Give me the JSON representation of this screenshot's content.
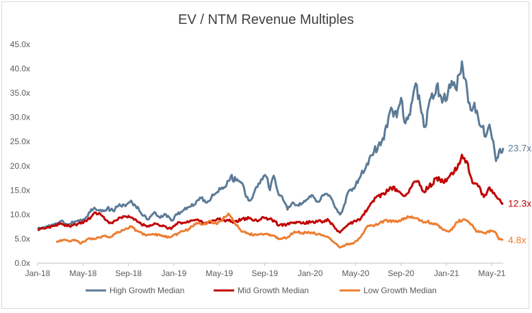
{
  "chart_data": {
    "type": "line",
    "title": "EV / NTM Revenue Multiples",
    "xlabel": "",
    "ylabel": "",
    "ylim": [
      0,
      45
    ],
    "y_ticks": [
      "0.0x",
      "5.0x",
      "10.0x",
      "15.0x",
      "20.0x",
      "25.0x",
      "30.0x",
      "35.0x",
      "40.0x",
      "45.0x"
    ],
    "x_ticks": [
      "Jan-18",
      "May-18",
      "Sep-18",
      "Jan-19",
      "May-19",
      "Sep-19",
      "Jan-20",
      "May-20",
      "Sep-20",
      "Jan-21",
      "May-21"
    ],
    "x_range": [
      "2018-01",
      "2021-06"
    ],
    "grid": "none",
    "legend_position": "bottom",
    "series": [
      {
        "name": "High Growth Median",
        "color": "#5b7a96",
        "end_label": "23.7x",
        "points": [
          [
            "2018-01-01",
            7.0
          ],
          [
            "2018-02-01",
            7.8
          ],
          [
            "2018-03-01",
            8.6
          ],
          [
            "2018-03-20",
            8.0
          ],
          [
            "2018-04-15",
            8.6
          ],
          [
            "2018-05-01",
            9.0
          ],
          [
            "2018-05-20",
            10.5
          ],
          [
            "2018-06-01",
            11.4
          ],
          [
            "2018-06-20",
            10.6
          ],
          [
            "2018-07-05",
            11.3
          ],
          [
            "2018-07-20",
            10.8
          ],
          [
            "2018-08-01",
            11.6
          ],
          [
            "2018-08-20",
            12.0
          ],
          [
            "2018-09-05",
            12.6
          ],
          [
            "2018-09-20",
            11.8
          ],
          [
            "2018-10-05",
            10.2
          ],
          [
            "2018-10-25",
            9.0
          ],
          [
            "2018-11-10",
            10.5
          ],
          [
            "2018-11-25",
            9.3
          ],
          [
            "2018-12-10",
            10.0
          ],
          [
            "2018-12-24",
            8.8
          ],
          [
            "2019-01-10",
            10.0
          ],
          [
            "2019-01-25",
            10.8
          ],
          [
            "2019-02-10",
            11.5
          ],
          [
            "2019-02-25",
            12.0
          ],
          [
            "2019-03-10",
            13.5
          ],
          [
            "2019-03-25",
            12.5
          ],
          [
            "2019-04-10",
            13.5
          ],
          [
            "2019-04-25",
            14.6
          ],
          [
            "2019-05-05",
            15.2
          ],
          [
            "2019-05-20",
            16.0
          ],
          [
            "2019-06-01",
            17.8
          ],
          [
            "2019-06-15",
            17.0
          ],
          [
            "2019-07-01",
            16.5
          ],
          [
            "2019-07-12",
            13.6
          ],
          [
            "2019-07-25",
            13.0
          ],
          [
            "2019-08-05",
            15.0
          ],
          [
            "2019-08-15",
            16.4
          ],
          [
            "2019-08-25",
            17.2
          ],
          [
            "2019-09-05",
            17.8
          ],
          [
            "2019-09-15",
            15.0
          ],
          [
            "2019-09-25",
            18.0
          ],
          [
            "2019-10-05",
            14.8
          ],
          [
            "2019-10-20",
            13.0
          ],
          [
            "2019-11-01",
            11.0
          ],
          [
            "2019-11-15",
            12.5
          ],
          [
            "2019-12-01",
            11.8
          ],
          [
            "2019-12-15",
            12.8
          ],
          [
            "2020-01-05",
            14.0
          ],
          [
            "2020-01-20",
            12.7
          ],
          [
            "2020-02-10",
            14.2
          ],
          [
            "2020-02-25",
            13.6
          ],
          [
            "2020-03-12",
            11.0
          ],
          [
            "2020-03-20",
            10.0
          ],
          [
            "2020-04-01",
            12.0
          ],
          [
            "2020-04-15",
            15.0
          ],
          [
            "2020-05-01",
            16.0
          ],
          [
            "2020-05-15",
            18.0
          ],
          [
            "2020-06-01",
            20.5
          ],
          [
            "2020-06-20",
            23.0
          ],
          [
            "2020-07-10",
            25.0
          ],
          [
            "2020-07-25",
            28.0
          ],
          [
            "2020-08-05",
            32.0
          ],
          [
            "2020-08-20",
            30.0
          ],
          [
            "2020-09-01",
            34.0
          ],
          [
            "2020-09-10",
            29.0
          ],
          [
            "2020-09-25",
            30.5
          ],
          [
            "2020-10-10",
            37.0
          ],
          [
            "2020-10-25",
            31.0
          ],
          [
            "2020-11-05",
            28.0
          ],
          [
            "2020-11-20",
            34.0
          ],
          [
            "2020-12-05",
            36.5
          ],
          [
            "2020-12-20",
            33.0
          ],
          [
            "2021-01-05",
            35.0
          ],
          [
            "2021-01-15",
            37.5
          ],
          [
            "2021-01-25",
            36.0
          ],
          [
            "2021-02-08",
            39.0
          ],
          [
            "2021-02-12",
            41.5
          ],
          [
            "2021-02-20",
            38.0
          ],
          [
            "2021-03-05",
            31.5
          ],
          [
            "2021-03-15",
            33.0
          ],
          [
            "2021-03-25",
            30.0
          ],
          [
            "2021-04-05",
            28.0
          ],
          [
            "2021-04-15",
            26.0
          ],
          [
            "2021-04-25",
            28.5
          ],
          [
            "2021-05-05",
            25.0
          ],
          [
            "2021-05-12",
            21.0
          ],
          [
            "2021-05-20",
            23.0
          ],
          [
            "2021-06-01",
            23.7
          ]
        ]
      },
      {
        "name": "Mid Growth Median",
        "color": "#c00000",
        "end_label": "12.3x",
        "points": [
          [
            "2018-01-01",
            6.8
          ],
          [
            "2018-02-10",
            7.6
          ],
          [
            "2018-03-01",
            8.2
          ],
          [
            "2018-03-25",
            7.6
          ],
          [
            "2018-04-20",
            8.2
          ],
          [
            "2018-05-10",
            8.6
          ],
          [
            "2018-06-01",
            10.4
          ],
          [
            "2018-06-20",
            9.8
          ],
          [
            "2018-07-10",
            8.2
          ],
          [
            "2018-07-30",
            8.8
          ],
          [
            "2018-08-20",
            9.6
          ],
          [
            "2018-09-10",
            9.4
          ],
          [
            "2018-09-30",
            8.3
          ],
          [
            "2018-10-20",
            7.5
          ],
          [
            "2018-11-10",
            8.2
          ],
          [
            "2018-11-30",
            7.6
          ],
          [
            "2018-12-24",
            7.0
          ],
          [
            "2019-01-15",
            8.4
          ],
          [
            "2019-02-10",
            8.4
          ],
          [
            "2019-03-01",
            8.9
          ],
          [
            "2019-03-20",
            8.3
          ],
          [
            "2019-04-10",
            8.5
          ],
          [
            "2019-04-30",
            9.0
          ],
          [
            "2019-05-20",
            8.8
          ],
          [
            "2019-06-10",
            8.5
          ],
          [
            "2019-06-30",
            9.0
          ],
          [
            "2019-07-20",
            9.2
          ],
          [
            "2019-08-10",
            8.7
          ],
          [
            "2019-08-30",
            9.3
          ],
          [
            "2019-09-20",
            9.0
          ],
          [
            "2019-10-10",
            7.8
          ],
          [
            "2019-10-30",
            8.0
          ],
          [
            "2019-11-20",
            8.4
          ],
          [
            "2019-12-10",
            8.2
          ],
          [
            "2020-01-05",
            8.5
          ],
          [
            "2020-01-30",
            8.6
          ],
          [
            "2020-02-20",
            8.8
          ],
          [
            "2020-03-10",
            7.0
          ],
          [
            "2020-03-20",
            6.3
          ],
          [
            "2020-04-05",
            7.5
          ],
          [
            "2020-04-25",
            8.5
          ],
          [
            "2020-05-15",
            9.2
          ],
          [
            "2020-06-05",
            11.5
          ],
          [
            "2020-06-25",
            13.5
          ],
          [
            "2020-07-15",
            14.4
          ],
          [
            "2020-08-05",
            15.5
          ],
          [
            "2020-08-25",
            14.8
          ],
          [
            "2020-09-10",
            13.8
          ],
          [
            "2020-09-30",
            15.8
          ],
          [
            "2020-10-15",
            16.9
          ],
          [
            "2020-10-30",
            14.8
          ],
          [
            "2020-11-15",
            15.6
          ],
          [
            "2020-12-05",
            17.6
          ],
          [
            "2020-12-25",
            16.5
          ],
          [
            "2021-01-10",
            18.0
          ],
          [
            "2021-01-30",
            19.5
          ],
          [
            "2021-02-12",
            22.3
          ],
          [
            "2021-02-25",
            21.0
          ],
          [
            "2021-03-10",
            16.5
          ],
          [
            "2021-03-25",
            15.8
          ],
          [
            "2021-04-10",
            13.6
          ],
          [
            "2021-04-25",
            15.6
          ],
          [
            "2021-05-10",
            14.0
          ],
          [
            "2021-05-25",
            12.6
          ],
          [
            "2021-06-01",
            12.3
          ]
        ]
      },
      {
        "name": "Low Growth Median",
        "color": "#ed7d31",
        "end_label": "4.8x",
        "points": [
          [
            "2018-02-20",
            4.3
          ],
          [
            "2018-03-10",
            4.8
          ],
          [
            "2018-03-25",
            4.5
          ],
          [
            "2018-04-10",
            4.8
          ],
          [
            "2018-04-25",
            4.0
          ],
          [
            "2018-05-15",
            5.0
          ],
          [
            "2018-06-05",
            5.0
          ],
          [
            "2018-06-25",
            5.6
          ],
          [
            "2018-07-15",
            5.4
          ],
          [
            "2018-08-01",
            6.4
          ],
          [
            "2018-08-20",
            6.8
          ],
          [
            "2018-09-05",
            7.6
          ],
          [
            "2018-09-25",
            6.6
          ],
          [
            "2018-10-15",
            5.8
          ],
          [
            "2018-11-05",
            6.0
          ],
          [
            "2018-11-25",
            5.7
          ],
          [
            "2018-12-20",
            5.3
          ],
          [
            "2019-01-15",
            6.2
          ],
          [
            "2019-02-10",
            7.0
          ],
          [
            "2019-03-01",
            8.3
          ],
          [
            "2019-03-20",
            8.0
          ],
          [
            "2019-04-10",
            8.6
          ],
          [
            "2019-04-25",
            8.0
          ],
          [
            "2019-05-10",
            9.0
          ],
          [
            "2019-05-25",
            10.2
          ],
          [
            "2019-06-10",
            8.5
          ],
          [
            "2019-06-30",
            6.5
          ],
          [
            "2019-07-20",
            6.0
          ],
          [
            "2019-08-10",
            5.8
          ],
          [
            "2019-08-30",
            6.0
          ],
          [
            "2019-09-20",
            5.7
          ],
          [
            "2019-10-10",
            5.0
          ],
          [
            "2019-10-30",
            5.2
          ],
          [
            "2019-11-20",
            6.5
          ],
          [
            "2019-12-10",
            6.2
          ],
          [
            "2020-01-05",
            6.3
          ],
          [
            "2020-01-30",
            5.8
          ],
          [
            "2020-02-20",
            5.3
          ],
          [
            "2020-03-10",
            4.0
          ],
          [
            "2020-03-20",
            3.2
          ],
          [
            "2020-04-05",
            3.8
          ],
          [
            "2020-04-25",
            4.0
          ],
          [
            "2020-05-15",
            5.4
          ],
          [
            "2020-06-01",
            7.5
          ],
          [
            "2020-06-20",
            7.6
          ],
          [
            "2020-07-10",
            8.6
          ],
          [
            "2020-07-30",
            8.7
          ],
          [
            "2020-08-20",
            8.5
          ],
          [
            "2020-09-10",
            9.3
          ],
          [
            "2020-09-30",
            9.6
          ],
          [
            "2020-10-20",
            8.7
          ],
          [
            "2020-11-10",
            8.5
          ],
          [
            "2020-11-30",
            8.2
          ],
          [
            "2020-12-20",
            7.0
          ],
          [
            "2021-01-10",
            6.6
          ],
          [
            "2021-01-30",
            8.4
          ],
          [
            "2021-02-15",
            9.0
          ],
          [
            "2021-03-01",
            8.4
          ],
          [
            "2021-03-20",
            6.5
          ],
          [
            "2021-04-10",
            6.2
          ],
          [
            "2021-04-30",
            6.6
          ],
          [
            "2021-05-10",
            6.4
          ],
          [
            "2021-05-20",
            4.9
          ],
          [
            "2021-06-01",
            4.8
          ]
        ]
      }
    ]
  }
}
